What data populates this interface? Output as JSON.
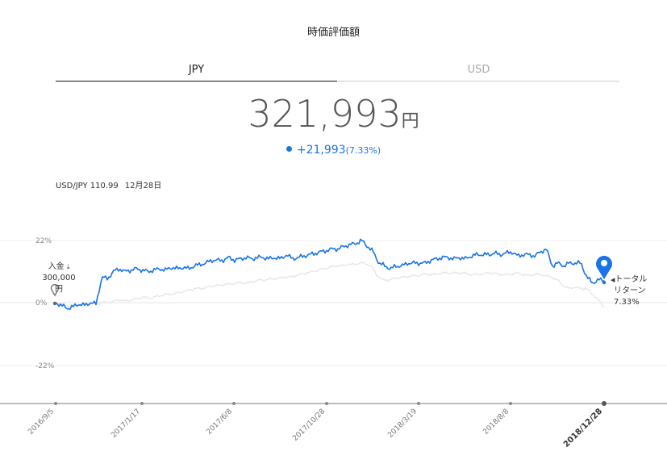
{
  "header": {
    "title": "時価評価額"
  },
  "tabs": [
    {
      "label": "JPY",
      "active": true
    },
    {
      "label": "USD",
      "active": false
    }
  ],
  "valuation": {
    "amount": "321,993",
    "unit": "円",
    "change": "+21,993",
    "change_pct": "(7.33%)"
  },
  "rate": {
    "pair": "USD/JPY 110.99",
    "date": "12月28日"
  },
  "deposit": {
    "label": "入金",
    "amount": "300,000円",
    "icon": "download-icon"
  },
  "total_return": {
    "label_line1": "トータル",
    "label_line2": "リターン",
    "value": "7.33%"
  },
  "colors": {
    "accent": "#1a73e8",
    "benchmark": "#e3e5e9",
    "axis": "#999999"
  },
  "chart_data": {
    "type": "line",
    "ylim": [
      -22,
      22
    ],
    "y_ticks": [
      "22%",
      "0%",
      "-22%"
    ],
    "x_ticks": [
      "2016/9/5",
      "2017/1/17",
      "2017/6/8",
      "2017/10/28",
      "2018/3/19",
      "2018/8/8",
      "2018/12/28"
    ],
    "series": [
      {
        "values": [
          0,
          -1,
          -2,
          -1.5,
          -0.5,
          -1,
          0,
          -0.5,
          9,
          8.5,
          11,
          12,
          11,
          11.5,
          12,
          11.5,
          11,
          11.5,
          12,
          11.5,
          12.5,
          12,
          12.5,
          12,
          13,
          13.5,
          14,
          15,
          15,
          15,
          16,
          15,
          15.5,
          16,
          15.5,
          16,
          16,
          15.5,
          16,
          15.5,
          17,
          15.5,
          16,
          16.5,
          17,
          17.5,
          18,
          18.5,
          19,
          19,
          20,
          20.5,
          21,
          22,
          20,
          18,
          14,
          13,
          12,
          13,
          13,
          14,
          14,
          14,
          14,
          15,
          15.5,
          16,
          16,
          15.5,
          16,
          15.5,
          16.5,
          17,
          17,
          17,
          17.5,
          17,
          17.5,
          18,
          16.5,
          17,
          17,
          16.5,
          18,
          19,
          13,
          14,
          13,
          14,
          14,
          14,
          9,
          7,
          8,
          8
        ]
      },
      {
        "values": [
          0,
          -0.5,
          -1,
          -1,
          -0.5,
          -0.5,
          0,
          -0.5,
          0,
          0,
          0.5,
          1,
          0.5,
          1,
          1.5,
          2,
          1.5,
          2,
          2.5,
          3,
          3,
          3.5,
          4,
          4.5,
          5,
          5,
          5.5,
          6,
          6,
          6.5,
          6.5,
          7,
          7,
          7,
          7.5,
          8,
          8,
          8.5,
          8.5,
          9,
          9,
          9.5,
          10,
          10.5,
          11,
          11.5,
          12,
          12.5,
          13,
          13,
          13.5,
          13.5,
          14,
          14,
          13,
          10,
          8,
          8,
          8.5,
          9,
          9,
          9.5,
          9.5,
          10,
          10,
          10,
          10.5,
          10.5,
          10.5,
          10.5,
          10.5,
          10,
          10,
          10,
          10.5,
          10.5,
          10,
          10,
          10,
          10.5,
          10,
          9.5,
          10,
          10,
          9.5,
          9,
          8,
          6,
          5,
          5.5,
          5,
          5,
          3,
          1,
          -1.5
        ]
      }
    ]
  }
}
